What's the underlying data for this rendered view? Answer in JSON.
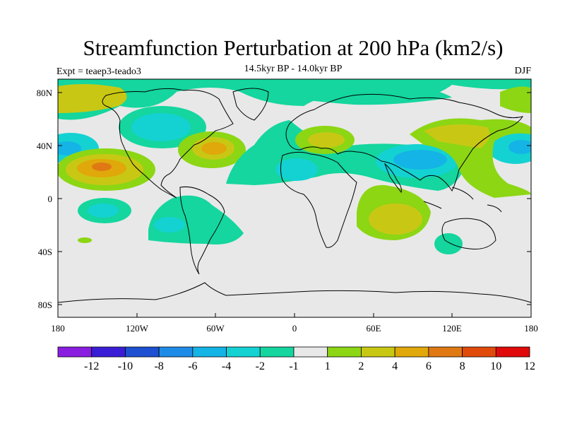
{
  "header": {
    "title": "Streamfunction Perturbation at 200 hPa (km2/s)",
    "subtitle": "14.5kyr BP - 14.0kyr BP",
    "experiment": "Expt = teaep3-teado3",
    "season": "DJF"
  },
  "axes": {
    "lat_labels": [
      "80N",
      "40N",
      "0",
      "40S",
      "80S"
    ],
    "lon_labels": [
      "180",
      "120W",
      "60W",
      "0",
      "60E",
      "120E",
      "180"
    ]
  },
  "colorbar": {
    "labels": [
      "-12",
      "-10",
      "-8",
      "-6",
      "-4",
      "-2",
      "-1",
      "1",
      "2",
      "4",
      "6",
      "8",
      "10",
      "12"
    ],
    "colors": [
      "#8a1ee0",
      "#3a1ed6",
      "#1e50d2",
      "#1e8ce6",
      "#14b4e6",
      "#14d2d2",
      "#14d69e",
      "#e8e8e8",
      "#8cd614",
      "#c8c814",
      "#e0a80a",
      "#e07814",
      "#e04a0a",
      "#e00a0a"
    ]
  },
  "colors": {
    "missing": "#e8e8e8",
    "coast": "#000000"
  }
}
